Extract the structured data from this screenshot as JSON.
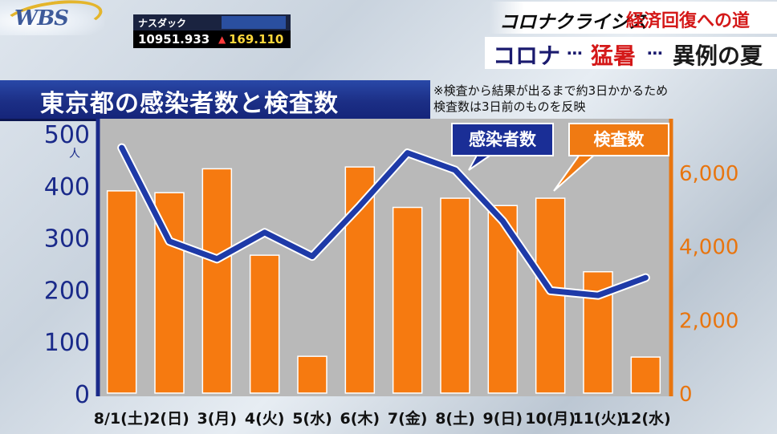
{
  "logo": {
    "text": "WBS"
  },
  "ticker": {
    "name": "ナスダック",
    "brand": "",
    "value": "10951.933",
    "arrow": "▲",
    "change": "169.110"
  },
  "series": {
    "title_a": "コロナクライシス",
    "title_b": "経済回復への道"
  },
  "subtitle": {
    "a": "コロナ",
    "dots1": "⋯",
    "b": "猛暑",
    "dots2": "⋯",
    "c": "異例の夏"
  },
  "chart_title": "東京都の感染者数と検査数",
  "note": {
    "line1": "※検査から結果が出るまで約3日かかるため",
    "line2": "検査数は3日前のものを反映"
  },
  "legend": {
    "cases": "感染者数",
    "tests": "検査数"
  },
  "colors": {
    "cases": "#1e3aa8",
    "tests": "#f67a10",
    "left_axis": "#1a2a8a",
    "right_axis": "#e8750f"
  },
  "chart_data": {
    "type": "bar",
    "categories": [
      "8/1(土)",
      "2(日)",
      "3(月)",
      "4(火)",
      "5(水)",
      "6(木)",
      "7(金)",
      "8(土)",
      "9(日)",
      "10(月)",
      "11(火)",
      "12(水)"
    ],
    "series": [
      {
        "name": "検査数",
        "type": "bar",
        "axis": "right",
        "values": [
          5500,
          5450,
          6100,
          3750,
          1000,
          6150,
          5050,
          5300,
          5100,
          5300,
          3300,
          980
        ]
      },
      {
        "name": "感染者数",
        "type": "line",
        "axis": "left",
        "values": [
          472,
          292,
          258,
          309,
          263,
          360,
          462,
          429,
          331,
          197,
          188,
          222
        ]
      }
    ],
    "left_axis": {
      "ylim": [
        0,
        500
      ],
      "ticks": [
        "0",
        "100",
        "200",
        "300",
        "400",
        "500"
      ],
      "unit": "人"
    },
    "right_axis": {
      "ylim": [
        0,
        7200
      ],
      "ticks": [
        "0",
        "2,000",
        "4,000",
        "6,000"
      ]
    }
  }
}
